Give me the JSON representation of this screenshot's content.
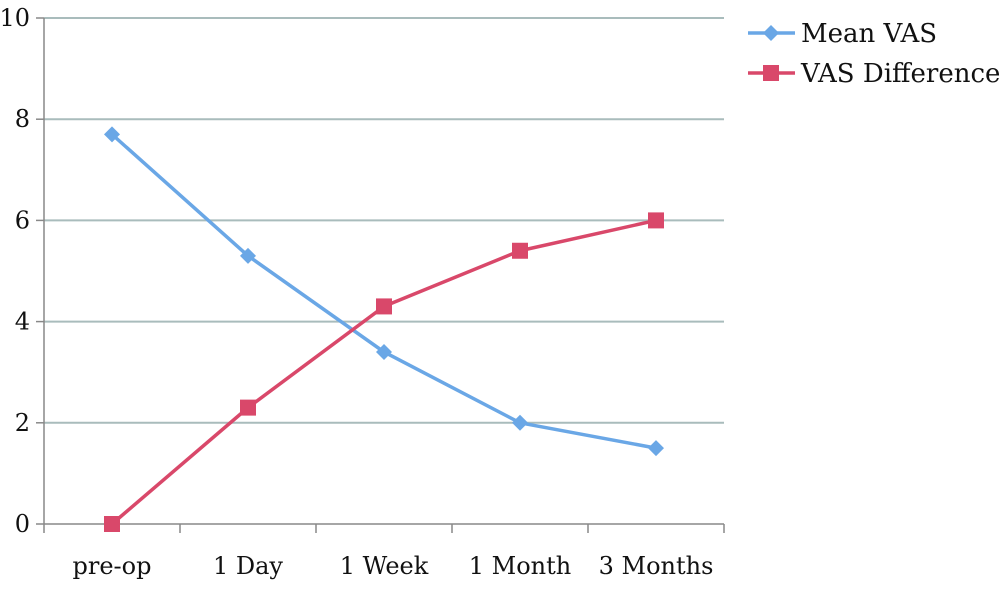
{
  "chart_data": {
    "type": "line",
    "categories": [
      "pre-op",
      "1 Day",
      "1 Week",
      "1 Month",
      "3 Months"
    ],
    "series": [
      {
        "name": "Mean VAS",
        "values": [
          7.7,
          5.3,
          3.4,
          2.0,
          1.5
        ],
        "color": "#6aa7e6",
        "marker": "diamond"
      },
      {
        "name": "VAS Difference",
        "values": [
          0,
          2.3,
          4.3,
          5.4,
          6.0
        ],
        "color": "#d9486a",
        "marker": "square"
      }
    ],
    "title": "",
    "xlabel": "",
    "ylabel": "",
    "ylim": [
      0,
      10
    ],
    "yticks": [
      "0",
      "2",
      "4",
      "6",
      "8",
      "10"
    ],
    "grid": true,
    "legend_position": "top-right",
    "colors": {
      "gridline": "#a9bcbc",
      "axis": "#888888"
    }
  }
}
